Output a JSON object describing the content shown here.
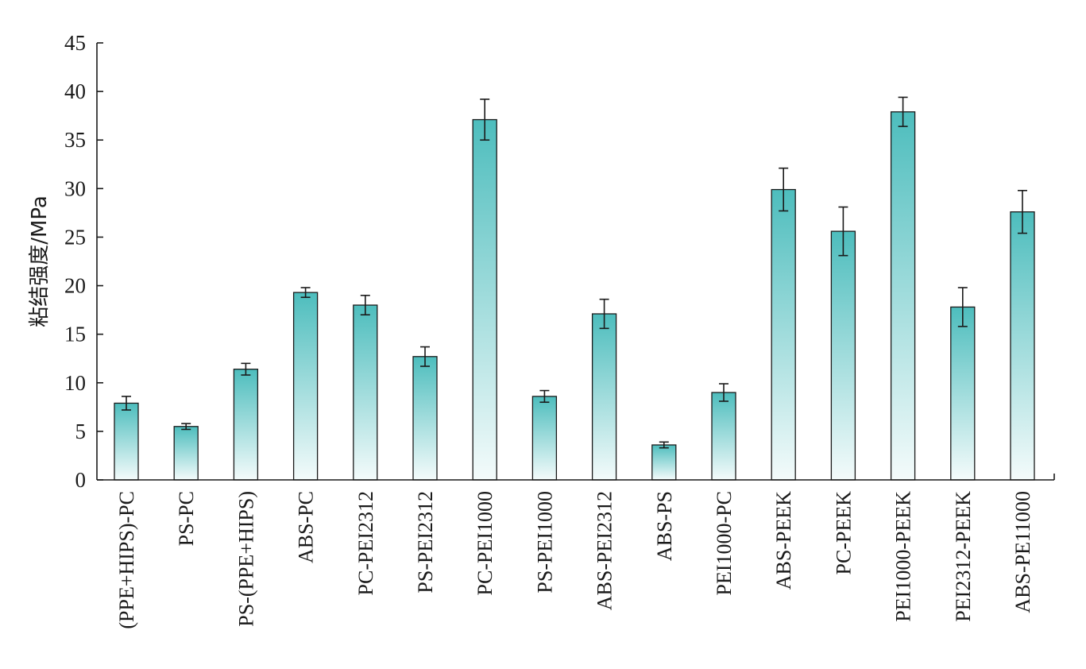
{
  "chart_data": {
    "type": "bar",
    "title": "",
    "xlabel": "",
    "ylabel": "粘结强度/MPa",
    "ylim": [
      0,
      45
    ],
    "yticks": [
      0,
      5,
      10,
      15,
      20,
      25,
      30,
      35,
      40,
      45
    ],
    "grid": false,
    "legend": "none",
    "bar_color_top": "#4dbdbd",
    "bar_color_bottom": "#f4fbfb",
    "categories": [
      "(PPE+HIPS)-PC",
      "PS-PC",
      "PS-(PPE+HIPS)",
      "ABS-PC",
      "PC-PEI2312",
      "PS-PEI2312",
      "PC-PEI1000",
      "PS-PEI1000",
      "ABS-PEI2312",
      "ABS-PS",
      "PEI1000-PC",
      "ABS-PEEK",
      "PC-PEEK",
      "PEI1000-PEEK",
      "PEI2312-PEEK",
      "ABS-PE11000"
    ],
    "values": [
      7.9,
      5.5,
      11.4,
      19.3,
      18.0,
      12.7,
      37.1,
      8.6,
      17.1,
      3.6,
      9.0,
      29.9,
      25.6,
      37.9,
      17.8,
      27.6
    ],
    "errors": [
      0.7,
      0.3,
      0.6,
      0.5,
      1.0,
      1.0,
      2.1,
      0.6,
      1.5,
      0.3,
      0.9,
      2.2,
      2.5,
      1.5,
      2.0,
      2.2
    ]
  }
}
